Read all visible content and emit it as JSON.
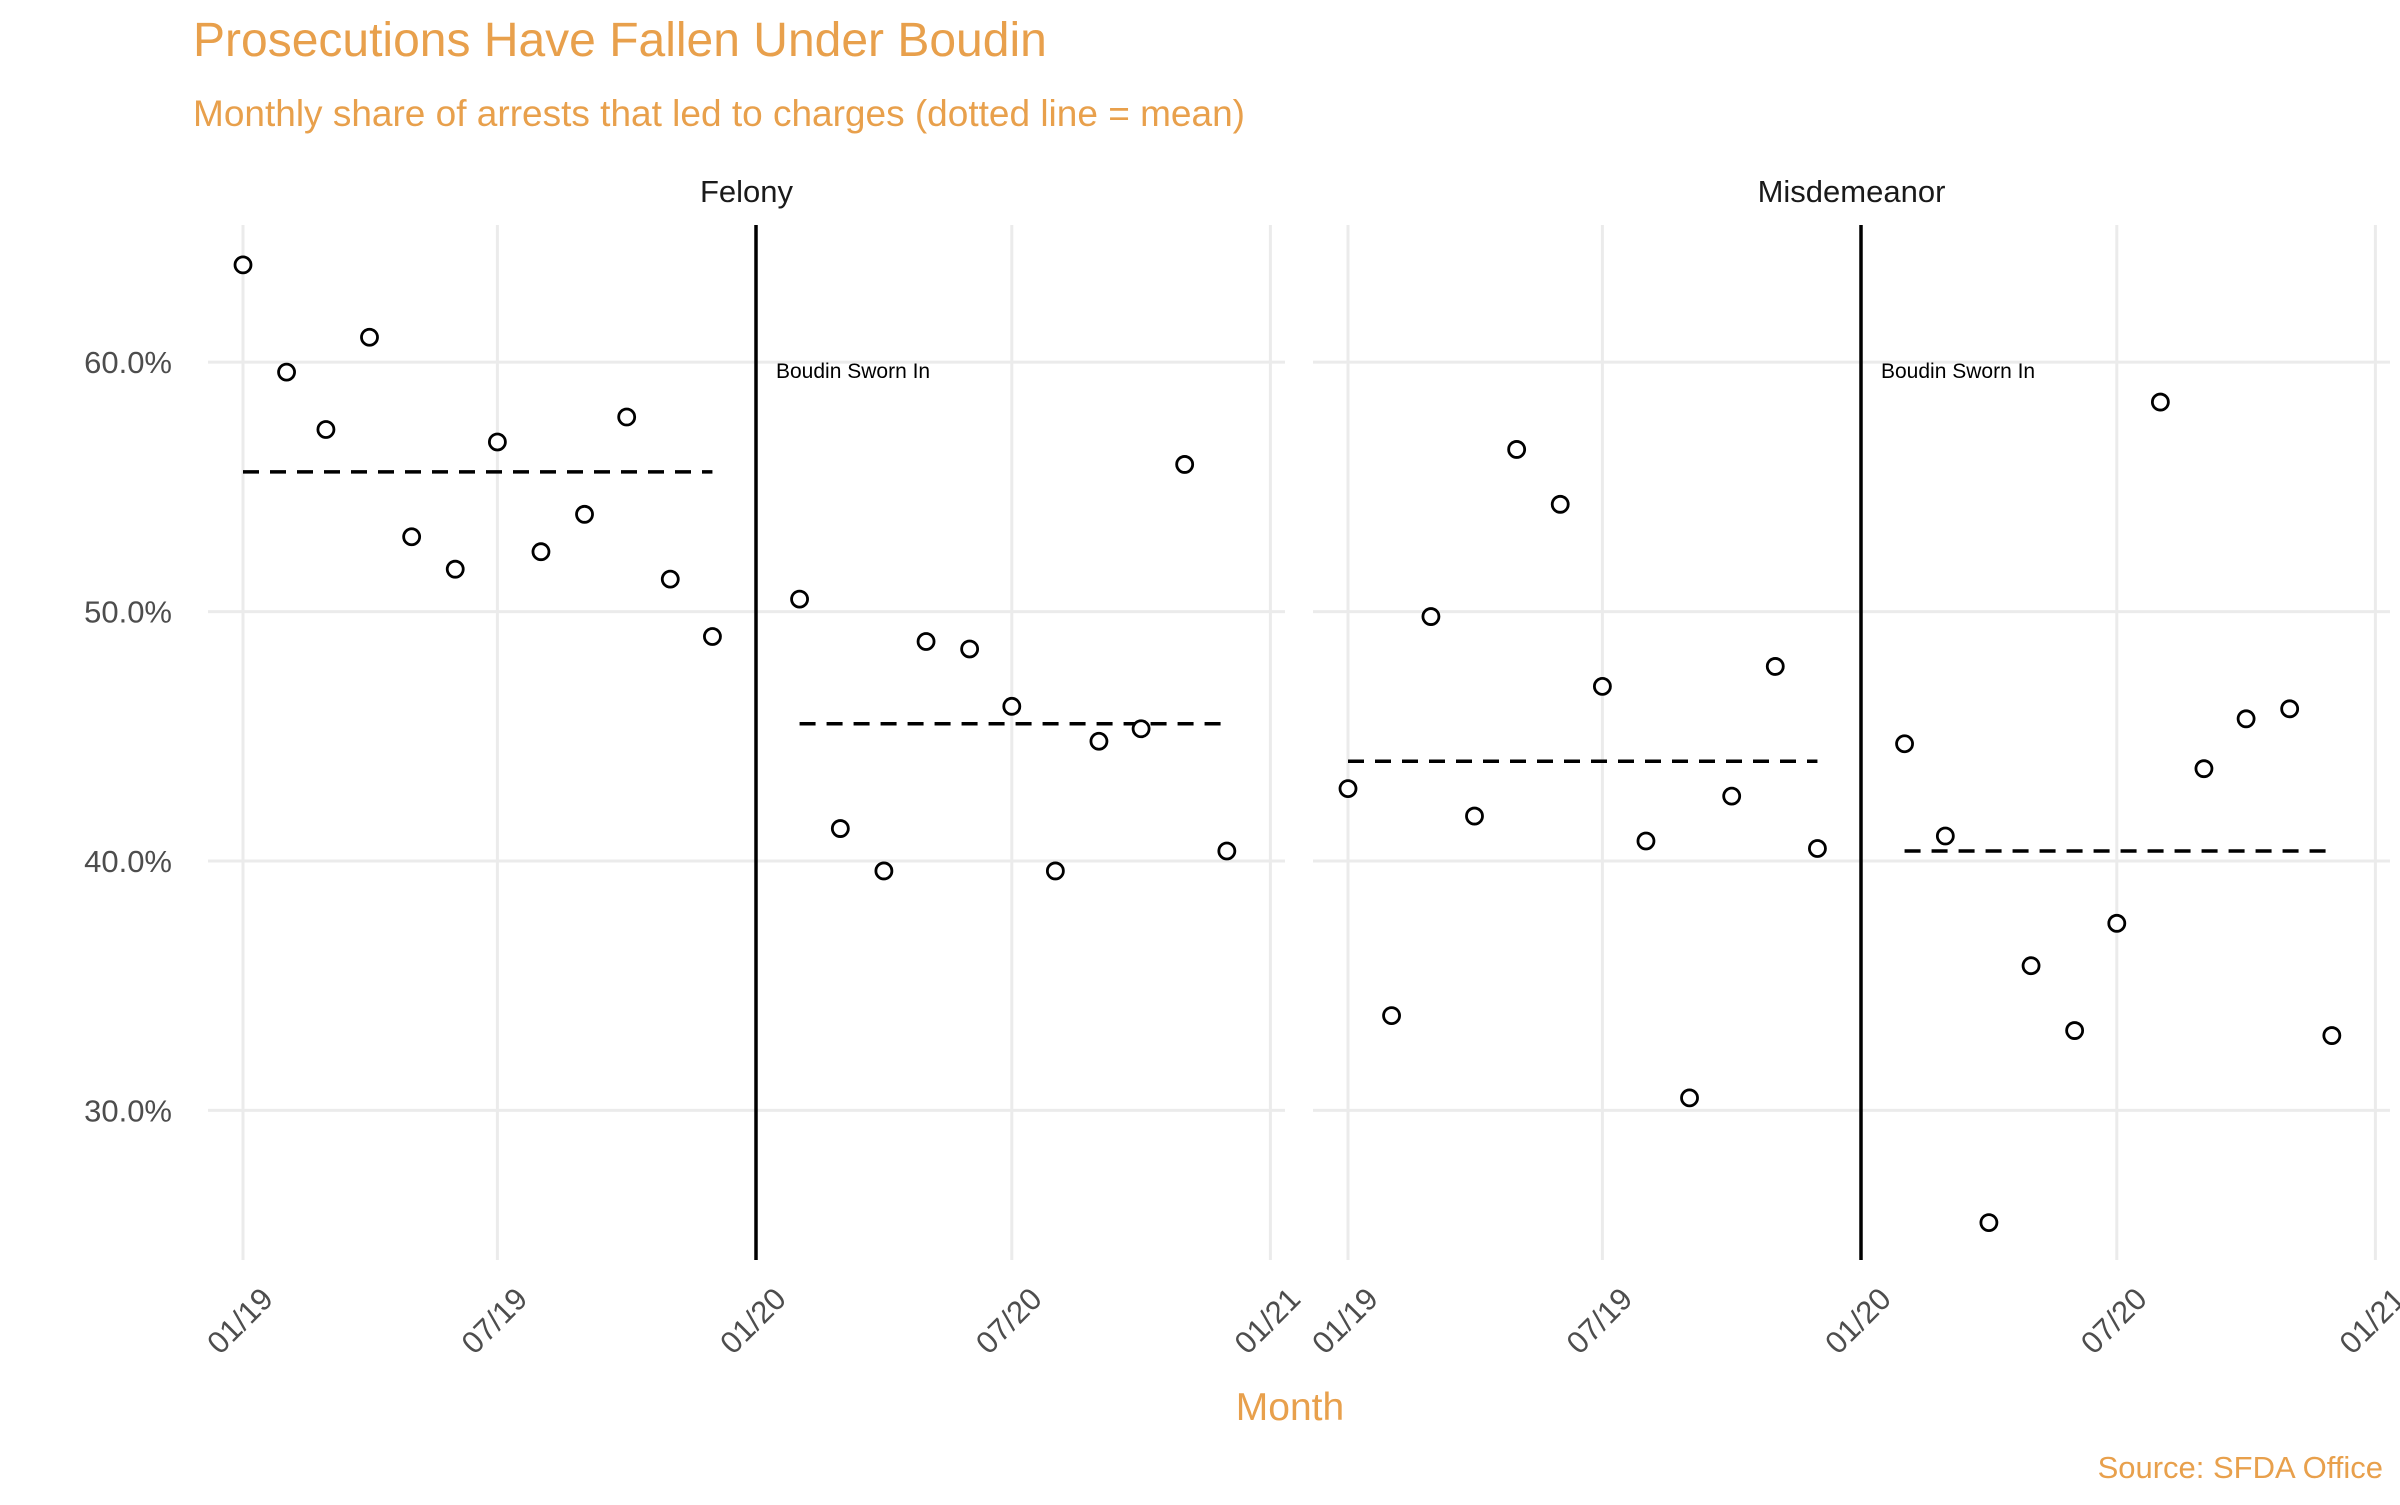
{
  "colors": {
    "accent": "#E8A04C",
    "grid": "#EBEBEB",
    "axis_text": "#4D4D4D",
    "ink": "#000000"
  },
  "chart_data": {
    "type": "scatter",
    "title": "Prosecutions Have Fallen Under Boudin",
    "subtitle": "Monthly share of arrests that led to charges (dotted line = mean)",
    "xlabel": "Month",
    "ylabel": "",
    "caption": "Source: SFDA Office",
    "x_ticks": [
      "01/19",
      "07/19",
      "01/20",
      "07/20",
      "01/21"
    ],
    "y_ticks": [
      "30.0%",
      "40.0%",
      "50.0%",
      "60.0%"
    ],
    "ylim": [
      0.24,
      0.655
    ],
    "grid": true,
    "event": {
      "date": "01/20",
      "label": "Boudin Sworn In"
    },
    "panels": [
      {
        "name": "Felony",
        "x": [
          "2019-01",
          "2019-02",
          "2019-03",
          "2019-04",
          "2019-05",
          "2019-06",
          "2019-07",
          "2019-08",
          "2019-09",
          "2019-10",
          "2019-11",
          "2019-12",
          "2020-02",
          "2020-03",
          "2020-04",
          "2020-05",
          "2020-06",
          "2020-07",
          "2020-08",
          "2020-09",
          "2020-10",
          "2020-11",
          "2020-12"
        ],
        "values": [
          0.639,
          0.596,
          0.573,
          0.61,
          0.53,
          0.517,
          0.568,
          0.524,
          0.539,
          0.578,
          0.513,
          0.49,
          0.505,
          0.413,
          0.396,
          0.488,
          0.485,
          0.462,
          0.396,
          0.448,
          0.453,
          0.559,
          0.404
        ],
        "mean_before": 0.556,
        "mean_after": 0.455
      },
      {
        "name": "Misdemeanor",
        "x": [
          "2019-01",
          "2019-02",
          "2019-03",
          "2019-04",
          "2019-05",
          "2019-06",
          "2019-07",
          "2019-08",
          "2019-09",
          "2019-10",
          "2019-11",
          "2019-12",
          "2020-02",
          "2020-03",
          "2020-04",
          "2020-05",
          "2020-06",
          "2020-07",
          "2020-08",
          "2020-09",
          "2020-10",
          "2020-11",
          "2020-12"
        ],
        "values": [
          0.429,
          0.338,
          0.498,
          0.418,
          0.565,
          0.543,
          0.47,
          0.408,
          0.305,
          0.426,
          0.478,
          0.405,
          0.447,
          0.41,
          0.255,
          0.358,
          0.332,
          0.375,
          0.584,
          0.437,
          0.457,
          0.461,
          0.33
        ],
        "mean_before": 0.44,
        "mean_after": 0.404
      }
    ]
  }
}
